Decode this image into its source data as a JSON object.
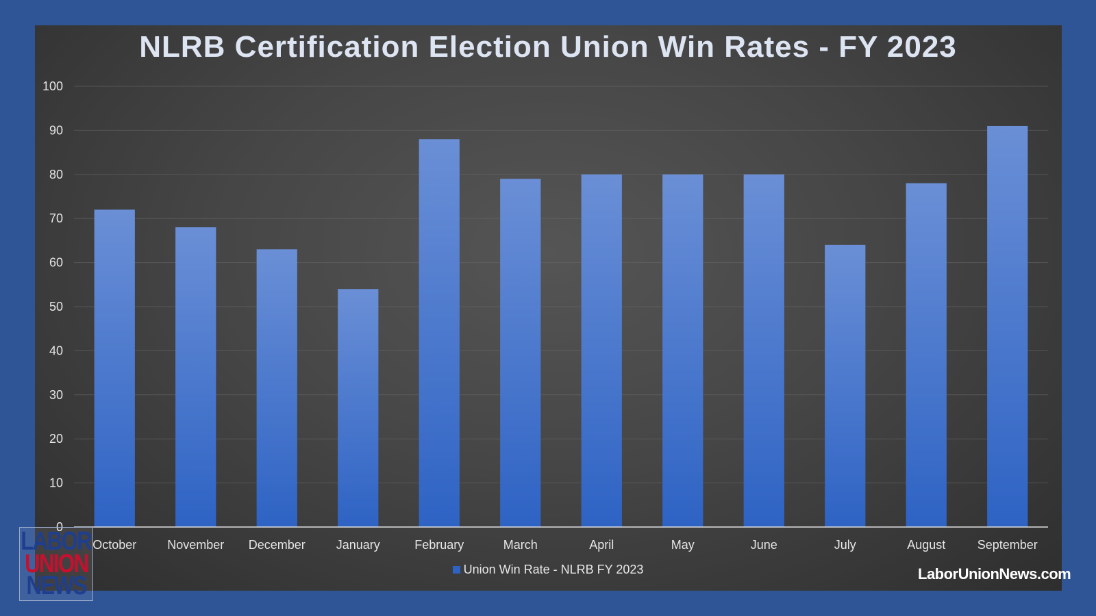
{
  "chart_data": {
    "type": "bar",
    "title": "NLRB Certification Election Union Win Rates - FY 2023",
    "categories": [
      "October",
      "November",
      "December",
      "January",
      "February",
      "March",
      "April",
      "May",
      "June",
      "July",
      "August",
      "September"
    ],
    "series": [
      {
        "name": "Union Win Rate - NLRB FY 2023",
        "values": [
          72,
          68,
          63,
          54,
          88,
          79,
          80,
          80,
          80,
          64,
          78,
          91
        ]
      }
    ],
    "xlabel": "",
    "ylabel": "",
    "ylim": [
      0,
      100
    ],
    "yticks": [
      "0",
      "10",
      "20",
      "30",
      "40",
      "50",
      "60",
      "70",
      "80",
      "90",
      "100"
    ],
    "grid": true,
    "legend_position": "bottom-center"
  },
  "colors": {
    "bar_top": "#6a8fd6",
    "bar_bottom": "#2e63c4",
    "background_frame": "#2f5597"
  },
  "watermark": {
    "site": "LaborUnionNews.com",
    "logo_lines": [
      "LABOR",
      "UNION",
      "NEWS"
    ]
  }
}
